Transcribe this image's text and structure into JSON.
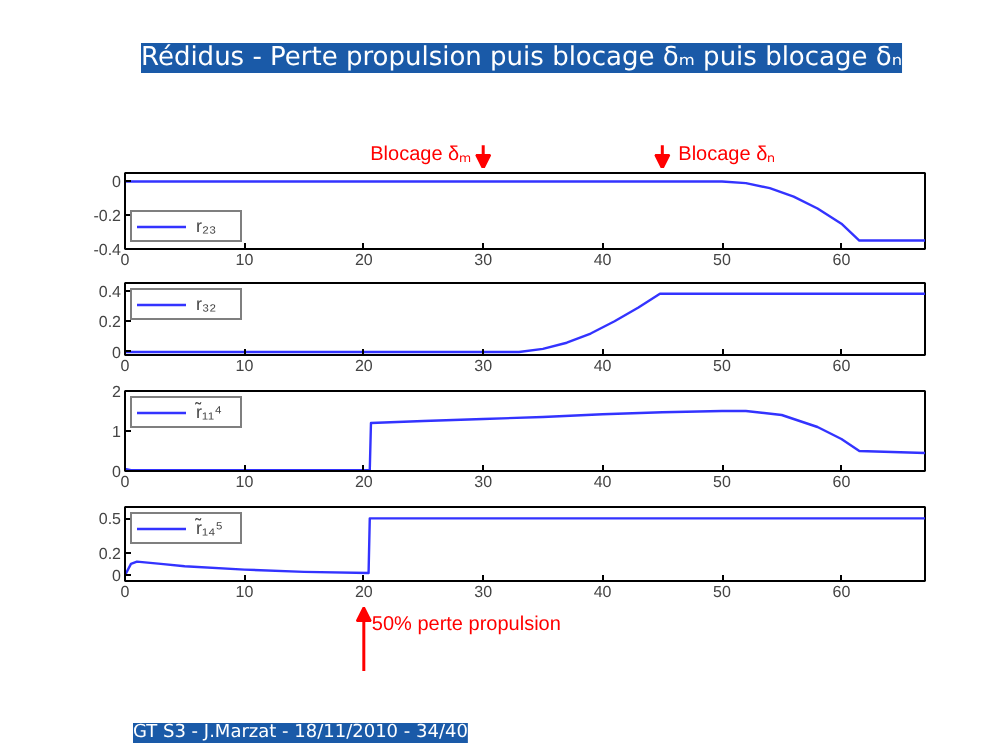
{
  "chart_data": [
    {
      "type": "line",
      "title": "Rédidus - Perte propulsion puis blocage δₘ puis blocage δₙ",
      "xlim": [
        0,
        67
      ],
      "xticks": [
        0,
        10,
        20,
        30,
        40,
        50,
        60
      ],
      "ylim": [
        -0.4,
        0.05
      ],
      "yticks": [
        -0.4,
        -0.2,
        0
      ],
      "legend": "bottom left",
      "grid": false,
      "series": [
        {
          "name": "r₂₃",
          "color": "#3333ff",
          "x": [
            0,
            10,
            20,
            30,
            40,
            50,
            52,
            54,
            56,
            58,
            60,
            61.5,
            67
          ],
          "values": [
            0,
            0,
            0,
            0,
            0,
            0,
            -0.01,
            -0.04,
            -0.09,
            -0.16,
            -0.25,
            -0.35,
            -0.35
          ]
        }
      ],
      "annotations": [
        {
          "text": "Blocage δₘ",
          "x": 30,
          "y": 0.05
        },
        {
          "text": "Blocage δₙ",
          "x": 45,
          "y": 0.05
        }
      ]
    },
    {
      "type": "line",
      "xlim": [
        0,
        67
      ],
      "xticks": [
        0,
        10,
        20,
        30,
        40,
        50,
        60
      ],
      "ylim": [
        -0.02,
        0.45
      ],
      "yticks": [
        0,
        0.2,
        0.4
      ],
      "legend": "top left",
      "grid": false,
      "series": [
        {
          "name": "r₃₂",
          "color": "#3333ff",
          "x": [
            0,
            10,
            20,
            33,
            35,
            37,
            39,
            41,
            43,
            44.8,
            55,
            67
          ],
          "values": [
            0,
            0,
            0,
            0,
            0.02,
            0.06,
            0.12,
            0.2,
            0.29,
            0.38,
            0.38,
            0.38
          ]
        }
      ]
    },
    {
      "type": "line",
      "xlim": [
        0,
        67
      ],
      "xticks": [
        0,
        10,
        20,
        30,
        40,
        50,
        60
      ],
      "ylim": [
        0,
        2
      ],
      "yticks": [
        0,
        1,
        2
      ],
      "legend": "top left",
      "grid": false,
      "series": [
        {
          "name": "r̃₁₁⁴",
          "color": "#3333ff",
          "x": [
            0,
            0.5,
            10,
            20.5,
            20.6,
            25,
            30,
            35,
            40,
            45,
            50,
            52,
            55,
            58,
            60,
            61.5,
            67
          ],
          "values": [
            0.05,
            0.02,
            0.02,
            0.02,
            1.2,
            1.25,
            1.3,
            1.35,
            1.42,
            1.47,
            1.5,
            1.5,
            1.4,
            1.1,
            0.8,
            0.5,
            0.45
          ]
        }
      ]
    },
    {
      "type": "line",
      "xlim": [
        0,
        67
      ],
      "xticks": [
        0,
        10,
        20,
        30,
        40,
        50,
        60
      ],
      "ylim": [
        -0.05,
        0.6
      ],
      "yticks": [
        0,
        0.2,
        0.5
      ],
      "legend": "top left",
      "grid": false,
      "series": [
        {
          "name": "r̃₁₄⁵",
          "color": "#3333ff",
          "x": [
            0,
            0.5,
            1,
            3,
            5,
            10,
            15,
            20.4,
            20.5,
            30,
            40,
            50,
            67
          ],
          "values": [
            0,
            0.1,
            0.12,
            0.1,
            0.08,
            0.05,
            0.03,
            0.02,
            0.5,
            0.5,
            0.5,
            0.5,
            0.5
          ]
        }
      ],
      "annotations": [
        {
          "text": "50% perte propulsion",
          "x": 20,
          "y": -0.05
        },
        "GT S3 - J.Marzat - 18/11/2010 - 34/40"
      ]
    }
  ]
}
